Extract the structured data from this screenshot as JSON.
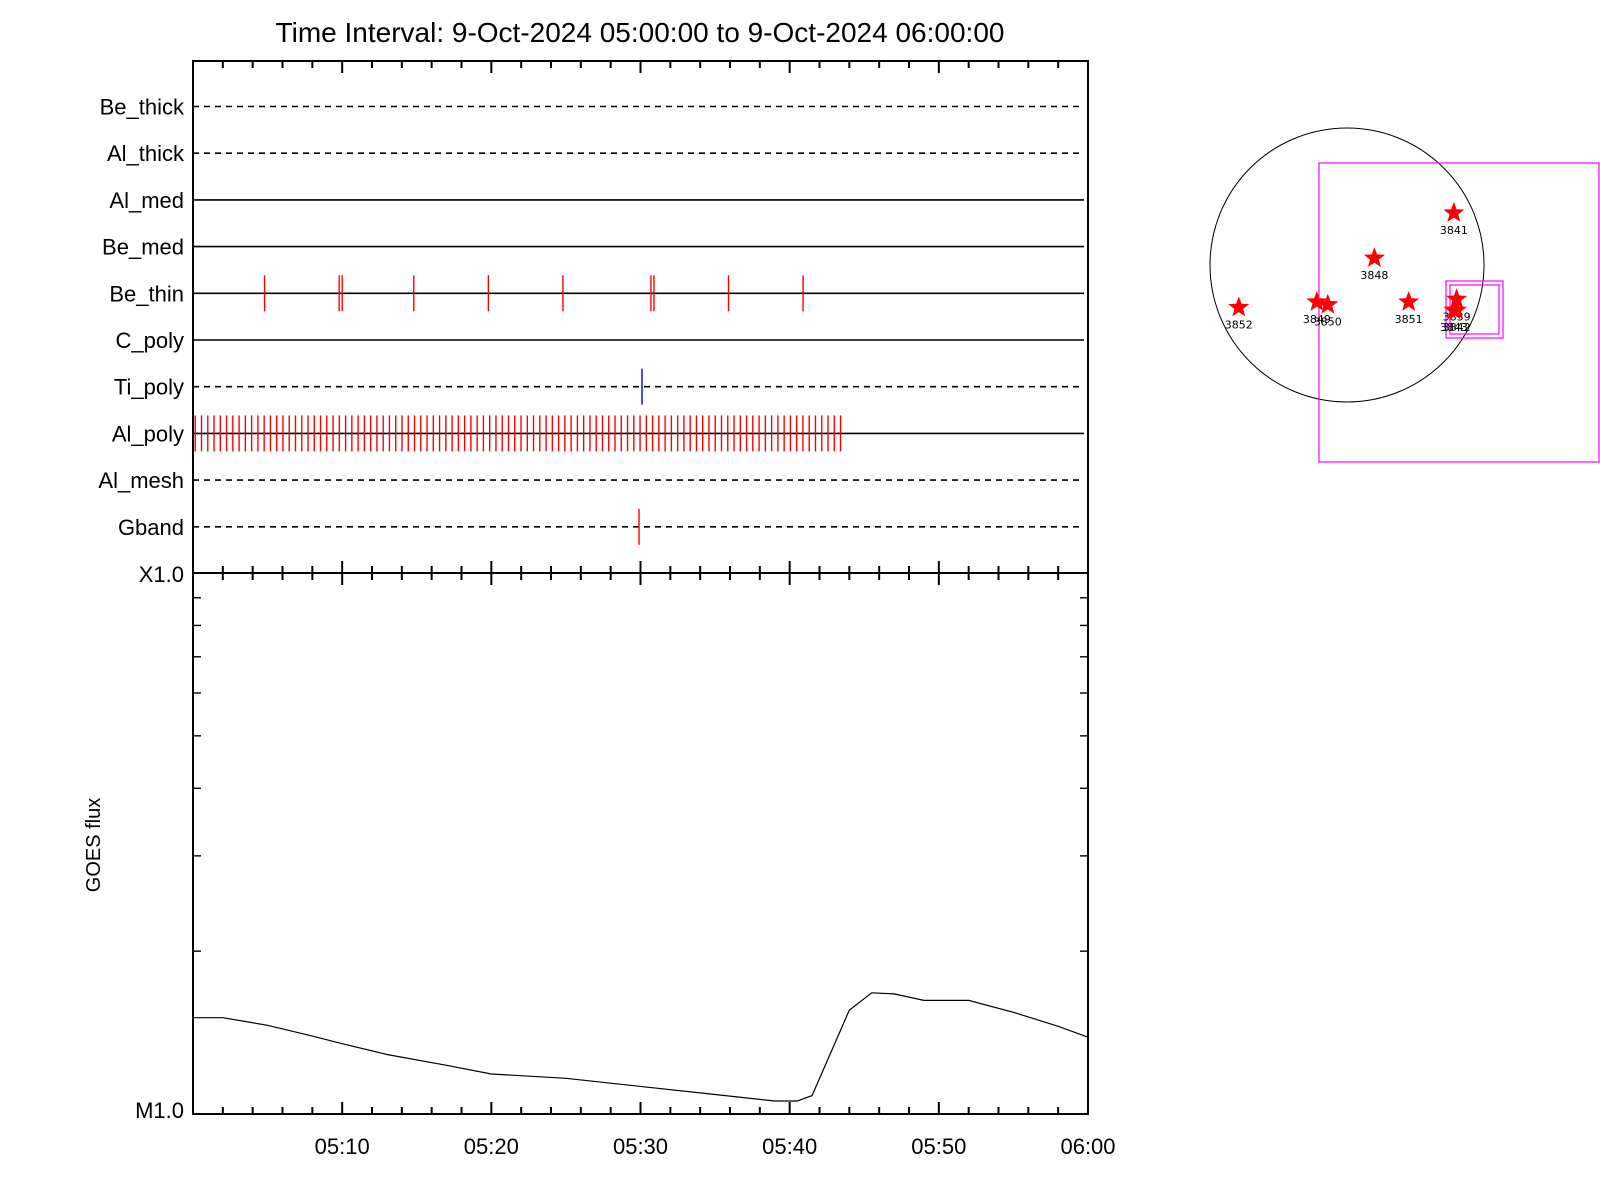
{
  "title": "Time Interval:  9-Oct-2024 05:00:00 to  9-Oct-2024 06:00:00",
  "colors": {
    "event": "#ff0000",
    "ti_event": "#0000cc",
    "frame": "#000000",
    "fov": "#ff00ff",
    "star": "#ff0000"
  },
  "chart_data": [
    {
      "type": "event-timeline",
      "time_range": [
        "05:00",
        "06:00"
      ],
      "channels": [
        {
          "name": "Be_thick",
          "line": "dashed",
          "events": []
        },
        {
          "name": "Al_thick",
          "line": "dashed",
          "events": []
        },
        {
          "name": "Al_med",
          "line": "solid",
          "events": []
        },
        {
          "name": "Be_med",
          "line": "solid",
          "events": []
        },
        {
          "name": "Be_thin",
          "line": "solid",
          "events": [
            4.8,
            9.8,
            10.0,
            14.8,
            19.8,
            24.8,
            30.7,
            30.9,
            35.9,
            40.9
          ]
        },
        {
          "name": "C_poly",
          "line": "solid",
          "events": []
        },
        {
          "name": "Ti_poly",
          "line": "dashed",
          "events": [
            30.1
          ]
        },
        {
          "name": "Al_poly",
          "line": "solid",
          "events": "every 0.4 min from 0.1 to 43.7 (dense ticks)"
        },
        {
          "name": "Al_mesh",
          "line": "dashed",
          "events": []
        },
        {
          "name": "Gband",
          "line": "dashed",
          "events": [
            29.9
          ]
        }
      ]
    },
    {
      "type": "line",
      "ylabel": "GOES flux",
      "yticks": [
        "X1.0",
        "M1.0"
      ],
      "ylim_log": [
        -5,
        -4
      ],
      "x_ticks": [
        "05:10",
        "05:20",
        "05:30",
        "05:40",
        "05:50",
        "06:00"
      ],
      "xlim_minutes": [
        0,
        60
      ],
      "series": [
        {
          "points": [
            [
              0,
              0.178
            ],
            [
              2,
              0.178
            ],
            [
              5,
              0.164
            ],
            [
              8,
              0.144
            ],
            [
              10,
              0.13
            ],
            [
              13,
              0.11
            ],
            [
              17,
              0.09
            ],
            [
              20,
              0.074
            ],
            [
              25,
              0.066
            ],
            [
              30,
              0.051
            ],
            [
              35,
              0.036
            ],
            [
              39,
              0.024
            ],
            [
              40.5,
              0.024
            ],
            [
              41.5,
              0.034
            ],
            [
              44,
              0.192
            ],
            [
              45.5,
              0.224
            ],
            [
              47,
              0.222
            ],
            [
              49,
              0.21
            ],
            [
              52,
              0.21
            ],
            [
              55,
              0.188
            ],
            [
              58,
              0.162
            ],
            [
              60,
              0.142
            ]
          ]
        }
      ]
    },
    {
      "type": "scatter",
      "description_printed": "",
      "points": [
        {
          "label": "3841",
          "x": 0.78,
          "y": 0.38
        },
        {
          "label": "3848",
          "x": 0.2,
          "y": 0.05
        },
        {
          "label": "3849",
          "x": -0.22,
          "y": -0.27
        },
        {
          "label": "3850",
          "x": -0.14,
          "y": -0.29
        },
        {
          "label": "3851",
          "x": 0.45,
          "y": -0.27
        },
        {
          "label": "3852",
          "x": -0.79,
          "y": -0.31
        },
        {
          "label": "3839",
          "x": 0.8,
          "y": -0.25
        },
        {
          "label": "3842",
          "x": 0.8,
          "y": -0.33
        },
        {
          "label": "3843",
          "x": 0.78,
          "y": -0.33
        }
      ]
    }
  ]
}
